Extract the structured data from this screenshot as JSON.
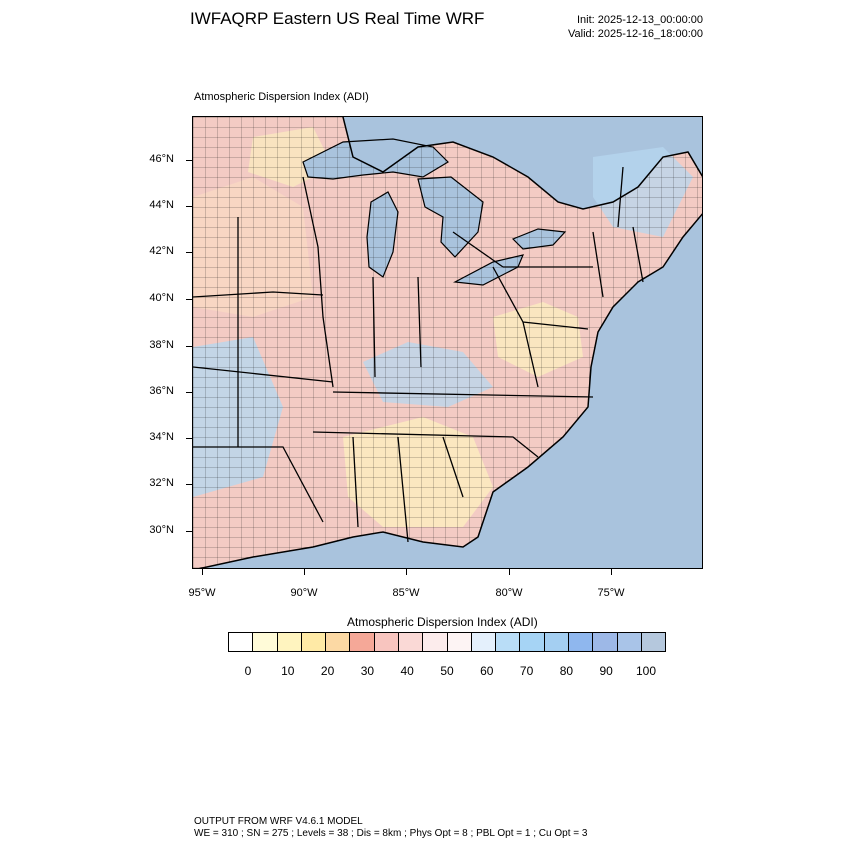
{
  "header": {
    "title": "IWFAQRP Eastern US Real Time WRF",
    "init": "Init: 2025-12-13_00:00:00",
    "valid": "Valid: 2025-12-16_18:00:00"
  },
  "plot": {
    "label": "Atmospheric Dispersion Index   (ADI)",
    "lat_labels": [
      "46°N",
      "44°N",
      "42°N",
      "40°N",
      "38°N",
      "36°N",
      "34°N",
      "32°N",
      "30°N"
    ],
    "lon_labels": [
      "95°W",
      "90°W",
      "85°W",
      "80°W",
      "75°W"
    ]
  },
  "colorbar": {
    "title": "Atmospheric Dispersion Index  (ADI)",
    "ticks": [
      "0",
      "10",
      "20",
      "30",
      "40",
      "50",
      "60",
      "70",
      "80",
      "90",
      "100"
    ],
    "colors": [
      "#ffffff",
      "#fffbd8",
      "#fff4bf",
      "#ffeaa6",
      "#fcd9a4",
      "#f5a898",
      "#f8c5bf",
      "#fad9d6",
      "#fcecec",
      "#fdf4f4",
      "#e4f0fc",
      "#b9ddf7",
      "#a6d4f5",
      "#a4cff2",
      "#8fb7ee",
      "#9db8e7",
      "#a9c4e8",
      "#b5c8dd"
    ]
  },
  "map_colors": {
    "ocean": "#a9c3dd",
    "land_pink": "#f3cbc4",
    "land_peach": "#f8d8c3",
    "land_yellow": "#fbecbf",
    "land_blue": "#b7d7ef",
    "coast_white": "#f4f4f4"
  },
  "footer": {
    "line1": "OUTPUT FROM WRF V4.6.1 MODEL",
    "line2": "WE = 310 ; SN = 275 ; Levels = 38 ; Dis = 8km ; Phys Opt = 8 ; PBL Opt = 1 ; Cu Opt = 3"
  }
}
